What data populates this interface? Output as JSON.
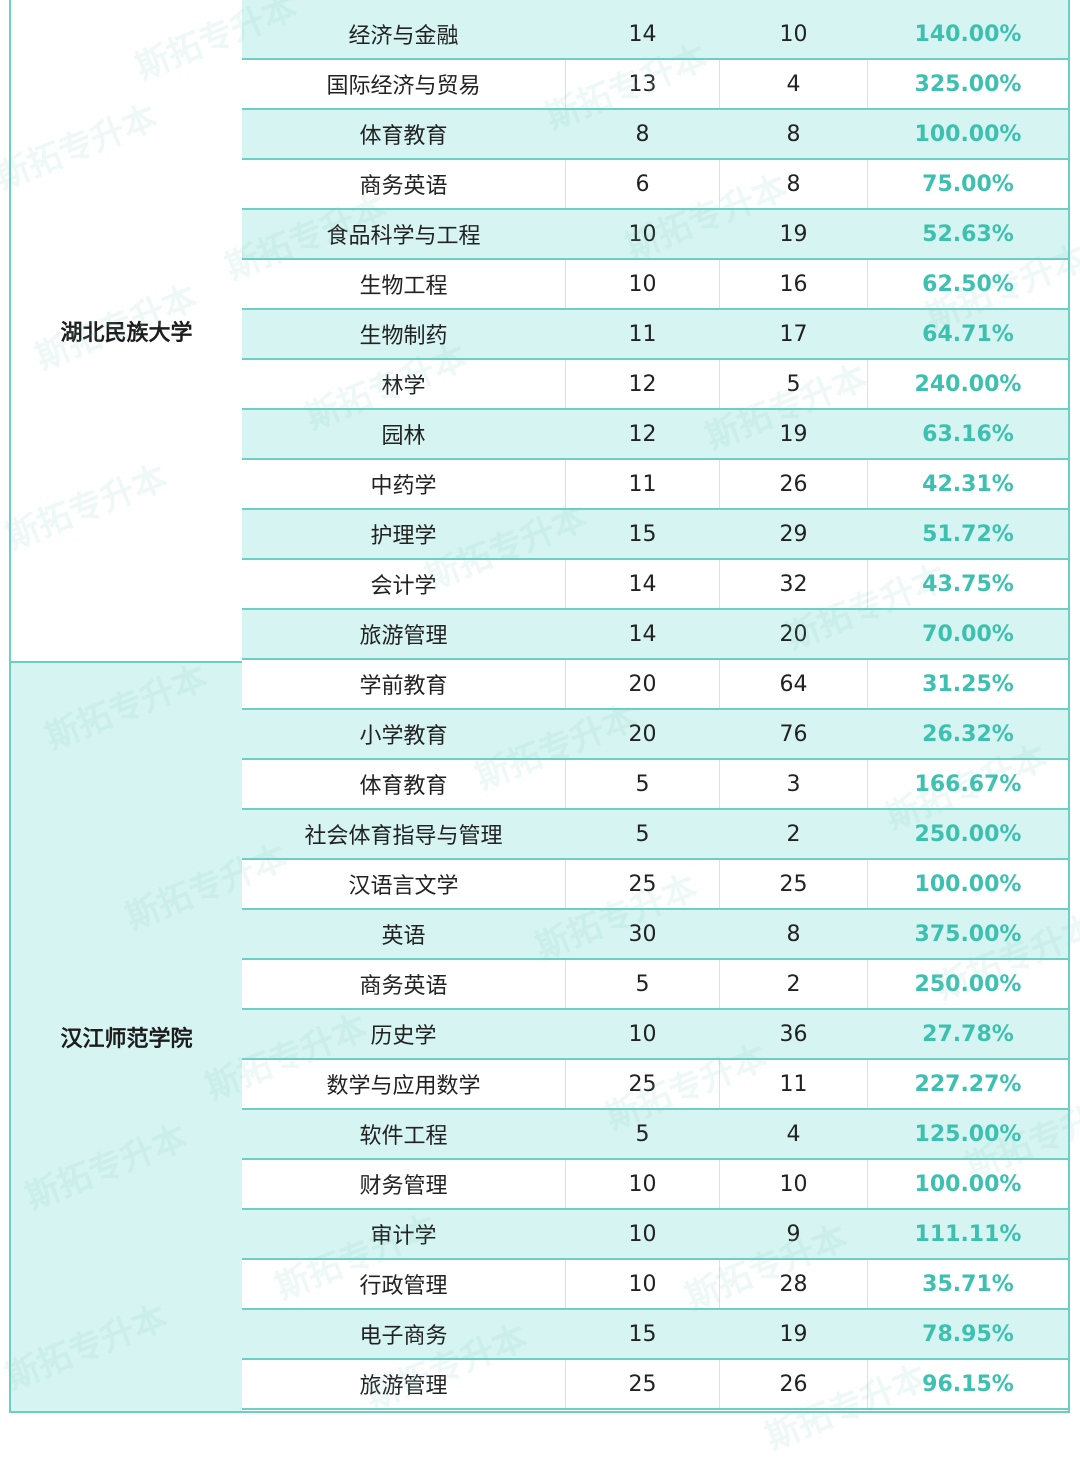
{
  "watermark": "斯拓专升本",
  "colors": {
    "border": "#6dcfc4",
    "shade": "#d6f4f1",
    "ratio_text": "#3ec0b0"
  },
  "schools": [
    {
      "name": "湖北民族大学",
      "rows": [
        {
          "major": "经济与金融",
          "a": "14",
          "b": "10",
          "ratio": "140.00%"
        },
        {
          "major": "国际经济与贸易",
          "a": "13",
          "b": "4",
          "ratio": "325.00%"
        },
        {
          "major": "体育教育",
          "a": "8",
          "b": "8",
          "ratio": "100.00%"
        },
        {
          "major": "商务英语",
          "a": "6",
          "b": "8",
          "ratio": "75.00%"
        },
        {
          "major": "食品科学与工程",
          "a": "10",
          "b": "19",
          "ratio": "52.63%"
        },
        {
          "major": "生物工程",
          "a": "10",
          "b": "16",
          "ratio": "62.50%"
        },
        {
          "major": "生物制药",
          "a": "11",
          "b": "17",
          "ratio": "64.71%"
        },
        {
          "major": "林学",
          "a": "12",
          "b": "5",
          "ratio": "240.00%"
        },
        {
          "major": "园林",
          "a": "12",
          "b": "19",
          "ratio": "63.16%"
        },
        {
          "major": "中药学",
          "a": "11",
          "b": "26",
          "ratio": "42.31%"
        },
        {
          "major": "护理学",
          "a": "15",
          "b": "29",
          "ratio": "51.72%"
        },
        {
          "major": "会计学",
          "a": "14",
          "b": "32",
          "ratio": "43.75%"
        },
        {
          "major": "旅游管理",
          "a": "14",
          "b": "20",
          "ratio": "70.00%"
        }
      ]
    },
    {
      "name": "汉江师范学院",
      "rows": [
        {
          "major": "学前教育",
          "a": "20",
          "b": "64",
          "ratio": "31.25%"
        },
        {
          "major": "小学教育",
          "a": "20",
          "b": "76",
          "ratio": "26.32%"
        },
        {
          "major": "体育教育",
          "a": "5",
          "b": "3",
          "ratio": "166.67%"
        },
        {
          "major": "社会体育指导与管理",
          "a": "5",
          "b": "2",
          "ratio": "250.00%"
        },
        {
          "major": "汉语言文学",
          "a": "25",
          "b": "25",
          "ratio": "100.00%"
        },
        {
          "major": "英语",
          "a": "30",
          "b": "8",
          "ratio": "375.00%"
        },
        {
          "major": "商务英语",
          "a": "5",
          "b": "2",
          "ratio": "250.00%"
        },
        {
          "major": "历史学",
          "a": "10",
          "b": "36",
          "ratio": "27.78%"
        },
        {
          "major": "数学与应用数学",
          "a": "25",
          "b": "11",
          "ratio": "227.27%"
        },
        {
          "major": "软件工程",
          "a": "5",
          "b": "4",
          "ratio": "125.00%"
        },
        {
          "major": "财务管理",
          "a": "10",
          "b": "10",
          "ratio": "100.00%"
        },
        {
          "major": "审计学",
          "a": "10",
          "b": "9",
          "ratio": "111.11%"
        },
        {
          "major": "行政管理",
          "a": "10",
          "b": "28",
          "ratio": "35.71%"
        },
        {
          "major": "电子商务",
          "a": "15",
          "b": "19",
          "ratio": "78.95%"
        },
        {
          "major": "旅游管理",
          "a": "25",
          "b": "26",
          "ratio": "96.15%"
        }
      ]
    }
  ]
}
